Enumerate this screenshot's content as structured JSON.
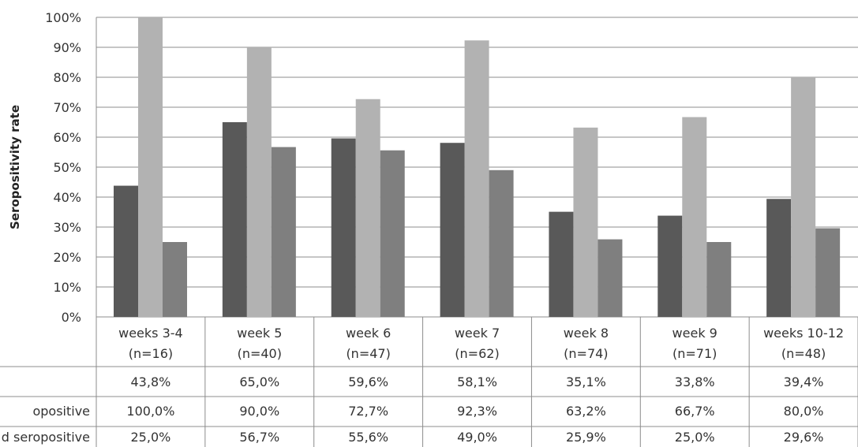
{
  "chart_data": {
    "type": "bar",
    "ylabel": "Seropositivity rate",
    "ylim": [
      0,
      100
    ],
    "y_ticks": [
      "0%",
      "10%",
      "20%",
      "30%",
      "40%",
      "50%",
      "60%",
      "70%",
      "80%",
      "90%",
      "100%"
    ],
    "grid": true,
    "categories": [
      {
        "line1": "weeks 3-4",
        "line2": "(n=16)"
      },
      {
        "line1": "week 5",
        "line2": "(n=40)"
      },
      {
        "line1": "week 6",
        "line2": "(n=47)"
      },
      {
        "line1": "week 7",
        "line2": "(n=62)"
      },
      {
        "line1": "week 8",
        "line2": "(n=74)"
      },
      {
        "line1": "week 9",
        "line2": "(n=71)"
      },
      {
        "line1": "weeks 10-12",
        "line2": "(n=48)"
      }
    ],
    "series": [
      {
        "name": "",
        "color": "#595959",
        "values": [
          43.8,
          65.0,
          59.6,
          58.1,
          35.1,
          33.8,
          39.4
        ],
        "labels": [
          "43,8%",
          "65,0%",
          "59,6%",
          "58,1%",
          "35,1%",
          "33,8%",
          "39,4%"
        ]
      },
      {
        "name": "opositive",
        "color": "#b2b2b2",
        "values": [
          100.0,
          90.0,
          72.7,
          92.3,
          63.2,
          66.7,
          80.0
        ],
        "labels": [
          "100,0%",
          "90,0%",
          "72,7%",
          "92,3%",
          "63,2%",
          "66,7%",
          "80,0%"
        ]
      },
      {
        "name": "d seropositive",
        "color": "#7f7f7f",
        "values": [
          25.0,
          56.7,
          55.6,
          49.0,
          25.9,
          25.0,
          29.6
        ],
        "labels": [
          "25,0%",
          "56,7%",
          "55,6%",
          "49,0%",
          "25,9%",
          "25,0%",
          "29,6%"
        ]
      }
    ]
  }
}
